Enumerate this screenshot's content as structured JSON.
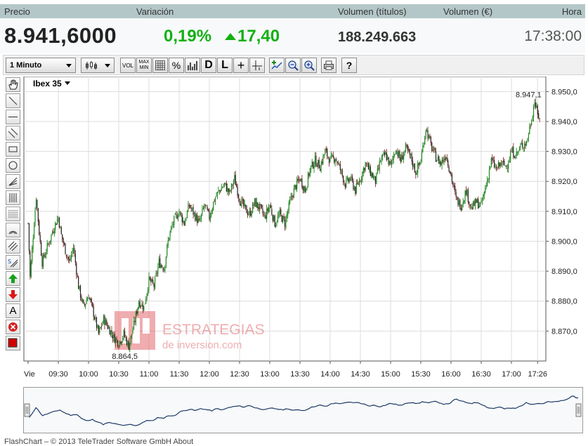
{
  "quote": {
    "labels": {
      "price": "Precio",
      "change": "Variación",
      "volume_shares": "Volumen (títulos)",
      "volume_eur": "Volumen (€)",
      "time": "Hora"
    },
    "price": "8.941,6000",
    "change_pct": "0,19%",
    "change_abs": "17,40",
    "volume_shares": "188.249.663",
    "volume_eur": "",
    "time": "17:38:00",
    "colors": {
      "up": "#12b012",
      "header_bg": "#b4c7c8"
    }
  },
  "toolbar": {
    "interval_value": "1 Minuto",
    "chart_type_icon": "candlestick-icon",
    "buttons": [
      {
        "name": "volume-button",
        "label": "VOL"
      },
      {
        "name": "maxmin-button",
        "label": "MAX MIN"
      },
      {
        "name": "grid-button",
        "label": ""
      },
      {
        "name": "percent-button",
        "label": "%"
      },
      {
        "name": "indicator-button",
        "label": ""
      },
      {
        "name": "daily-button",
        "label": "D"
      },
      {
        "name": "log-button",
        "label": "L"
      },
      {
        "name": "crosshair-button",
        "label": "+"
      },
      {
        "name": "crosshair-alt-button",
        "label": ""
      },
      {
        "name": "add-indicator-button",
        "label": ""
      },
      {
        "name": "zoom-out-button",
        "label": ""
      },
      {
        "name": "zoom-in-button",
        "label": ""
      },
      {
        "name": "print-button",
        "label": ""
      },
      {
        "name": "help-button",
        "label": "?"
      }
    ]
  },
  "symbol": {
    "name": "Ibex 35"
  },
  "chart_data": {
    "type": "candlestick",
    "ylim": [
      8860,
      8955
    ],
    "yticks": [
      "8.950,0",
      "8.940,0",
      "8.930,0",
      "8.920,0",
      "8.910,0",
      "8.900,0",
      "8.890,0",
      "8.880,0",
      "8.870,0"
    ],
    "ytick_values": [
      8950,
      8940,
      8930,
      8920,
      8910,
      8900,
      8890,
      8880,
      8870
    ],
    "xticks": [
      "Vie",
      "09:30",
      "10:00",
      "10:30",
      "11:00",
      "11:30",
      "12:00",
      "12:30",
      "13:00",
      "13:30",
      "14:00",
      "14:30",
      "15:00",
      "15:30",
      "16:00",
      "16:30",
      "17:00",
      "17:26"
    ],
    "xtick_minutes": [
      0,
      30,
      60,
      90,
      120,
      150,
      180,
      210,
      240,
      270,
      300,
      330,
      360,
      390,
      420,
      450,
      480,
      506
    ],
    "max_label": "8.947,1",
    "min_label": "8.864,5",
    "grid": true,
    "close_path": [
      [
        0,
        8906
      ],
      [
        2,
        8888
      ],
      [
        5,
        8902
      ],
      [
        8,
        8915
      ],
      [
        11,
        8903
      ],
      [
        14,
        8893
      ],
      [
        18,
        8897
      ],
      [
        22,
        8901
      ],
      [
        26,
        8905
      ],
      [
        30,
        8908
      ],
      [
        33,
        8902
      ],
      [
        37,
        8897
      ],
      [
        41,
        8893
      ],
      [
        45,
        8898
      ],
      [
        50,
        8885
      ],
      [
        55,
        8878
      ],
      [
        60,
        8882
      ],
      [
        65,
        8876
      ],
      [
        70,
        8869
      ],
      [
        75,
        8874
      ],
      [
        80,
        8871
      ],
      [
        85,
        8868
      ],
      [
        90,
        8866
      ],
      [
        95,
        8869
      ],
      [
        100,
        8865
      ],
      [
        105,
        8872
      ],
      [
        110,
        8880
      ],
      [
        115,
        8878
      ],
      [
        120,
        8887
      ],
      [
        125,
        8885
      ],
      [
        130,
        8893
      ],
      [
        135,
        8891
      ],
      [
        140,
        8902
      ],
      [
        145,
        8907
      ],
      [
        150,
        8910
      ],
      [
        155,
        8906
      ],
      [
        160,
        8912
      ],
      [
        165,
        8909
      ],
      [
        170,
        8906
      ],
      [
        175,
        8912
      ],
      [
        180,
        8908
      ],
      [
        185,
        8914
      ],
      [
        190,
        8917
      ],
      [
        195,
        8919
      ],
      [
        200,
        8916
      ],
      [
        205,
        8921
      ],
      [
        210,
        8914
      ],
      [
        215,
        8911
      ],
      [
        220,
        8909
      ],
      [
        225,
        8913
      ],
      [
        230,
        8911
      ],
      [
        235,
        8908
      ],
      [
        240,
        8912
      ],
      [
        245,
        8906
      ],
      [
        250,
        8909
      ],
      [
        255,
        8906
      ],
      [
        260,
        8913
      ],
      [
        265,
        8918
      ],
      [
        270,
        8921
      ],
      [
        275,
        8917
      ],
      [
        280,
        8924
      ],
      [
        285,
        8927
      ],
      [
        290,
        8925
      ],
      [
        295,
        8930
      ],
      [
        300,
        8927
      ],
      [
        305,
        8928
      ],
      [
        310,
        8924
      ],
      [
        315,
        8919
      ],
      [
        320,
        8921
      ],
      [
        325,
        8917
      ],
      [
        330,
        8921
      ],
      [
        335,
        8926
      ],
      [
        340,
        8923
      ],
      [
        345,
        8920
      ],
      [
        350,
        8927
      ],
      [
        355,
        8929
      ],
      [
        360,
        8925
      ],
      [
        365,
        8931
      ],
      [
        370,
        8927
      ],
      [
        375,
        8931
      ],
      [
        380,
        8928
      ],
      [
        385,
        8923
      ],
      [
        390,
        8927
      ],
      [
        395,
        8938
      ],
      [
        400,
        8932
      ],
      [
        405,
        8928
      ],
      [
        410,
        8926
      ],
      [
        415,
        8929
      ],
      [
        420,
        8922
      ],
      [
        425,
        8914
      ],
      [
        430,
        8912
      ],
      [
        435,
        8917
      ],
      [
        440,
        8911
      ],
      [
        445,
        8913
      ],
      [
        450,
        8912
      ],
      [
        455,
        8919
      ],
      [
        460,
        8927
      ],
      [
        465,
        8924
      ],
      [
        470,
        8926
      ],
      [
        475,
        8925
      ],
      [
        480,
        8930
      ],
      [
        485,
        8929
      ],
      [
        490,
        8932
      ],
      [
        495,
        8933
      ],
      [
        500,
        8941
      ],
      [
        503,
        8947
      ],
      [
        506,
        8942
      ],
      [
        508,
        8941.6
      ]
    ]
  },
  "footer": {
    "text": "FlashChart – © 2013 TeleTrader Software GmbH",
    "about": "About"
  },
  "watermark": {
    "line1": "ESTRATEGIAS",
    "line2": "de inversion.com"
  }
}
